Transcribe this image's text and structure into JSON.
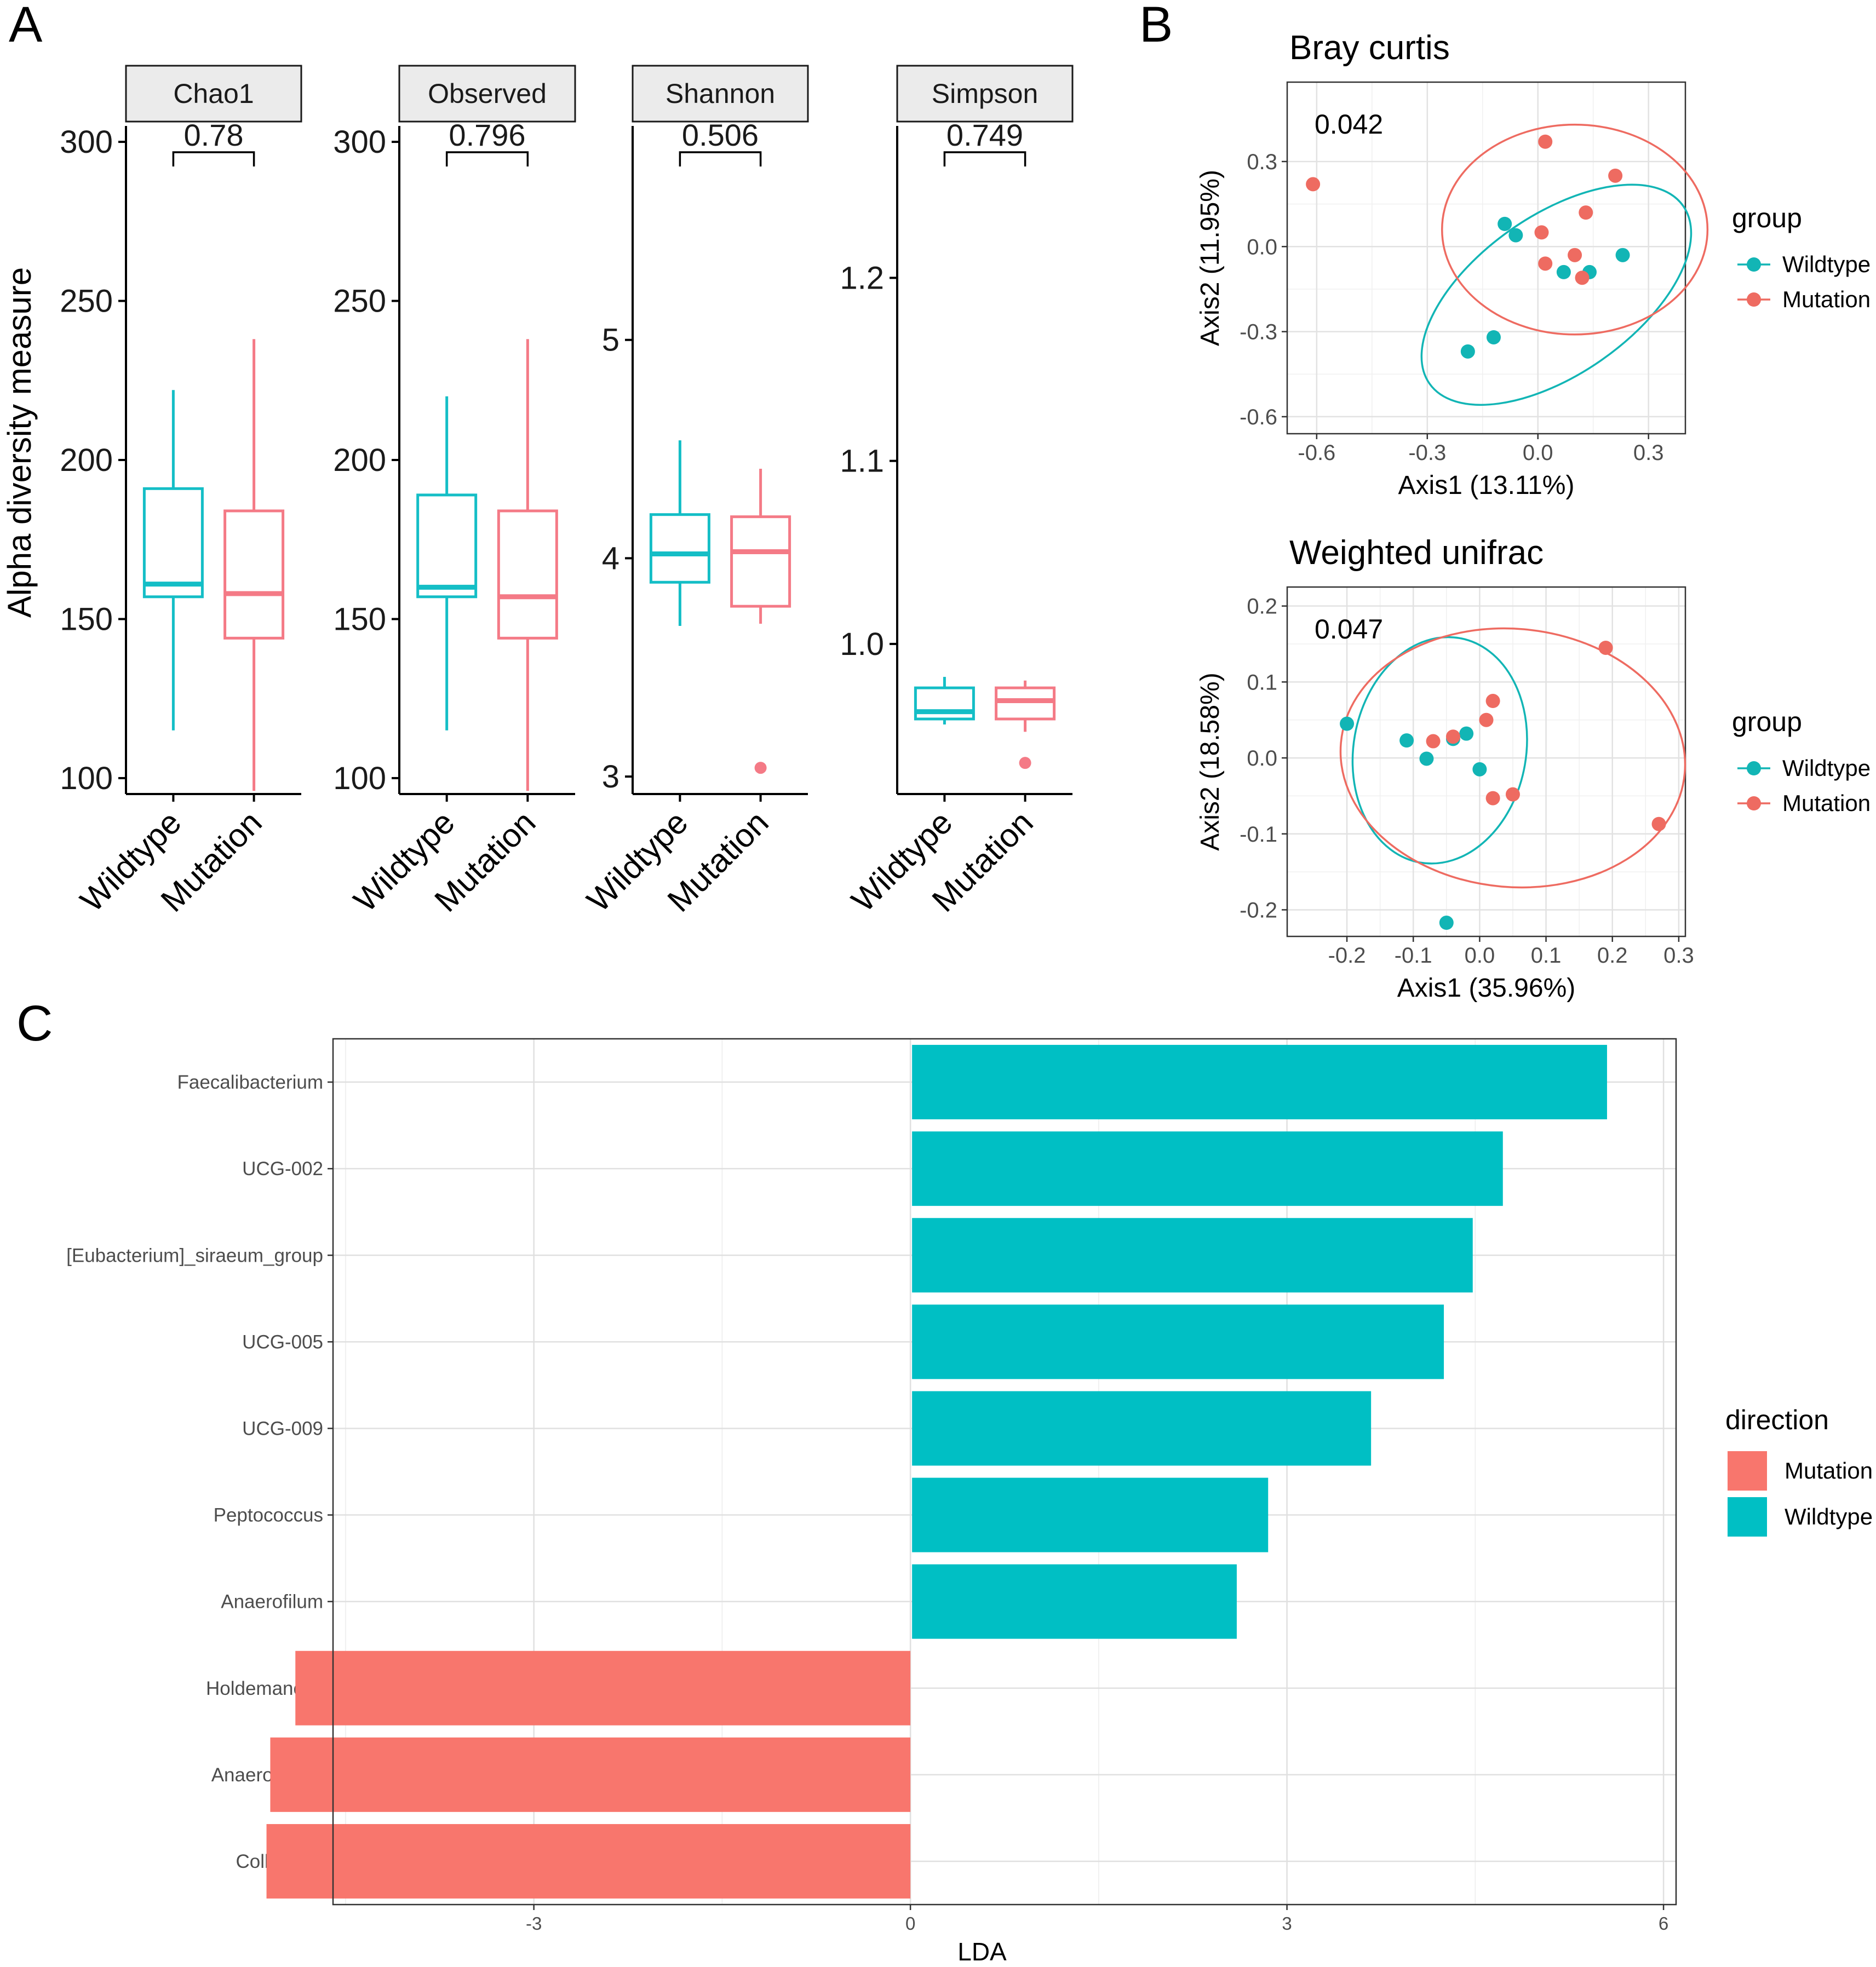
{
  "panels": {
    "a": "A",
    "b": "B",
    "c": "C"
  },
  "colors": {
    "wildtype": "#14BEC6",
    "mutation": "#F47A86",
    "wildtype_point": "#12B5B5",
    "mutation_point": "#EE6B61",
    "bar_wildtype": "#00BFC4",
    "bar_mutation": "#F8766D"
  },
  "chart_data": [
    {
      "id": "alpha_diversity",
      "type": "box",
      "ylabel": "Alpha diversity measure",
      "categories": [
        "Wildtype",
        "Mutation"
      ],
      "facets": [
        {
          "name": "Chao1",
          "p_value": "0.78",
          "ylim": [
            95,
            305
          ],
          "ticks": [
            100,
            150,
            200,
            250,
            300
          ],
          "tick_labels": [
            "100",
            "150",
            "200",
            "250",
            "300"
          ],
          "boxes": [
            {
              "group": "Wildtype",
              "min": 115,
              "q1": 157,
              "median": 161,
              "q3": 191,
              "max": 222,
              "outliers": []
            },
            {
              "group": "Mutation",
              "min": 96,
              "q1": 144,
              "median": 158,
              "q3": 184,
              "max": 238,
              "outliers": []
            }
          ]
        },
        {
          "name": "Observed",
          "p_value": "0.796",
          "ylim": [
            95,
            305
          ],
          "ticks": [
            100,
            150,
            200,
            250,
            300
          ],
          "tick_labels": [
            "100",
            "150",
            "200",
            "250",
            "300"
          ],
          "boxes": [
            {
              "group": "Wildtype",
              "min": 115,
              "q1": 157,
              "median": 160,
              "q3": 189,
              "max": 220,
              "outliers": []
            },
            {
              "group": "Mutation",
              "min": 96,
              "q1": 144,
              "median": 157,
              "q3": 184,
              "max": 238,
              "outliers": []
            }
          ]
        },
        {
          "name": "Shannon",
          "p_value": "0.506",
          "ylim": [
            2.92,
            5.98
          ],
          "ticks": [
            3,
            4,
            5
          ],
          "tick_labels": [
            "3",
            "4",
            "5"
          ],
          "boxes": [
            {
              "group": "Wildtype",
              "min": 3.69,
              "q1": 3.89,
              "median": 4.02,
              "q3": 4.2,
              "max": 4.54,
              "outliers": []
            },
            {
              "group": "Mutation",
              "min": 3.7,
              "q1": 3.78,
              "median": 4.03,
              "q3": 4.19,
              "max": 4.41,
              "outliers": [
                3.04
              ]
            }
          ]
        },
        {
          "name": "Simpson",
          "p_value": "0.749",
          "ylim": [
            0.918,
            1.283
          ],
          "ticks": [
            1.0,
            1.1,
            1.2
          ],
          "tick_labels": [
            "1.0",
            "1.1",
            "1.2"
          ],
          "boxes": [
            {
              "group": "Wildtype",
              "min": 0.956,
              "q1": 0.959,
              "median": 0.963,
              "q3": 0.976,
              "max": 0.982,
              "outliers": []
            },
            {
              "group": "Mutation",
              "min": 0.952,
              "q1": 0.959,
              "median": 0.969,
              "q3": 0.976,
              "max": 0.98,
              "outliers": [
                0.935
              ]
            }
          ]
        }
      ]
    },
    {
      "id": "bray_curtis",
      "type": "scatter",
      "title": "Bray curtis",
      "p_value": "0.042",
      "xlabel": "Axis1 (13.11%)",
      "ylabel": "Axis2 (11.95%)",
      "xlim": [
        -0.68,
        0.4
      ],
      "ylim": [
        -0.66,
        0.58
      ],
      "xticks": [
        -0.6,
        -0.3,
        0.0,
        0.3
      ],
      "xtick_labels": [
        "-0.6",
        "-0.3",
        "0.0",
        "0.3"
      ],
      "yticks": [
        -0.6,
        -0.3,
        0.0,
        0.3
      ],
      "ytick_labels": [
        "-0.6",
        "-0.3",
        "0.0",
        "0.3"
      ],
      "legend_title": "group",
      "legend": [
        "Wildtype",
        "Mutation"
      ],
      "series": [
        {
          "name": "Wildtype",
          "x": [
            -0.09,
            -0.06,
            -0.12,
            -0.19,
            0.07,
            0.14,
            0.23
          ],
          "y": [
            0.08,
            0.04,
            -0.32,
            -0.37,
            -0.09,
            -0.09,
            -0.03
          ]
        },
        {
          "name": "Mutation",
          "x": [
            -0.61,
            0.02,
            0.21,
            0.13,
            0.01,
            0.1,
            0.02,
            0.12
          ],
          "y": [
            0.22,
            0.37,
            0.25,
            0.12,
            0.05,
            -0.03,
            -0.06,
            -0.11
          ]
        }
      ],
      "ellipses": [
        {
          "group": "Wildtype",
          "cx": 0.05,
          "cy": -0.17,
          "rx": 0.42,
          "ry": 0.28,
          "angle_deg": 35
        },
        {
          "group": "Mutation",
          "cx": 0.1,
          "cy": 0.06,
          "rx": 0.36,
          "ry": 0.37,
          "angle_deg": 0
        }
      ]
    },
    {
      "id": "weighted_unifrac",
      "type": "scatter",
      "title": "Weighted unifrac",
      "p_value": "0.047",
      "xlabel": "Axis1 (35.96%)",
      "ylabel": "Axis2 (18.58%)",
      "xlim": [
        -0.29,
        0.31
      ],
      "ylim": [
        -0.235,
        0.225
      ],
      "xticks": [
        -0.2,
        -0.1,
        0.0,
        0.1,
        0.2,
        0.3
      ],
      "xtick_labels": [
        "-0.2",
        "-0.1",
        "0.0",
        "0.1",
        "0.2",
        "0.3"
      ],
      "yticks": [
        -0.2,
        -0.1,
        0.0,
        0.1,
        0.2
      ],
      "ytick_labels": [
        "-0.2",
        "-0.1",
        "0.0",
        "0.1",
        "0.2"
      ],
      "legend_title": "group",
      "legend": [
        "Wildtype",
        "Mutation"
      ],
      "series": [
        {
          "name": "Wildtype",
          "x": [
            -0.2,
            -0.11,
            -0.08,
            -0.04,
            -0.02,
            0.0,
            -0.05
          ],
          "y": [
            0.045,
            0.023,
            -0.001,
            0.025,
            0.032,
            -0.015,
            -0.217
          ]
        },
        {
          "name": "Mutation",
          "x": [
            -0.07,
            -0.04,
            0.01,
            0.02,
            0.05,
            0.02,
            0.19,
            0.27
          ],
          "y": [
            0.022,
            0.028,
            0.05,
            0.075,
            -0.048,
            -0.053,
            0.145,
            -0.087
          ]
        }
      ],
      "ellipses": [
        {
          "group": "Wildtype",
          "cx": -0.06,
          "cy": 0.01,
          "rx": 0.13,
          "ry": 0.15,
          "angle_deg": -10
        },
        {
          "group": "Mutation",
          "cx": 0.05,
          "cy": 0.0,
          "rx": 0.26,
          "ry": 0.17,
          "angle_deg": -5
        }
      ]
    },
    {
      "id": "lda",
      "type": "bar",
      "orientation": "horizontal",
      "xlabel": "LDA",
      "xlim": [
        -4.6,
        6.1
      ],
      "xticks": [
        -3,
        0,
        3,
        6
      ],
      "xtick_labels": [
        "-3",
        "0",
        "3",
        "6"
      ],
      "categories": [
        "Faecalibacterium",
        "UCG-002",
        "[Eubacterium]_siraeum_group",
        "UCG-005",
        "UCG-009",
        "Peptococcus",
        "Anaerofilum",
        "Holdemanella",
        "Anaerostipes",
        "Collinsella"
      ],
      "values": [
        5.55,
        4.72,
        4.48,
        4.25,
        3.67,
        2.85,
        2.6,
        -4.9,
        -5.1,
        -5.13
      ],
      "direction": [
        "Wildtype",
        "Wildtype",
        "Wildtype",
        "Wildtype",
        "Wildtype",
        "Wildtype",
        "Wildtype",
        "Mutation",
        "Mutation",
        "Mutation"
      ],
      "legend_title": "direction",
      "legend": [
        "Mutation",
        "Wildtype"
      ]
    }
  ]
}
